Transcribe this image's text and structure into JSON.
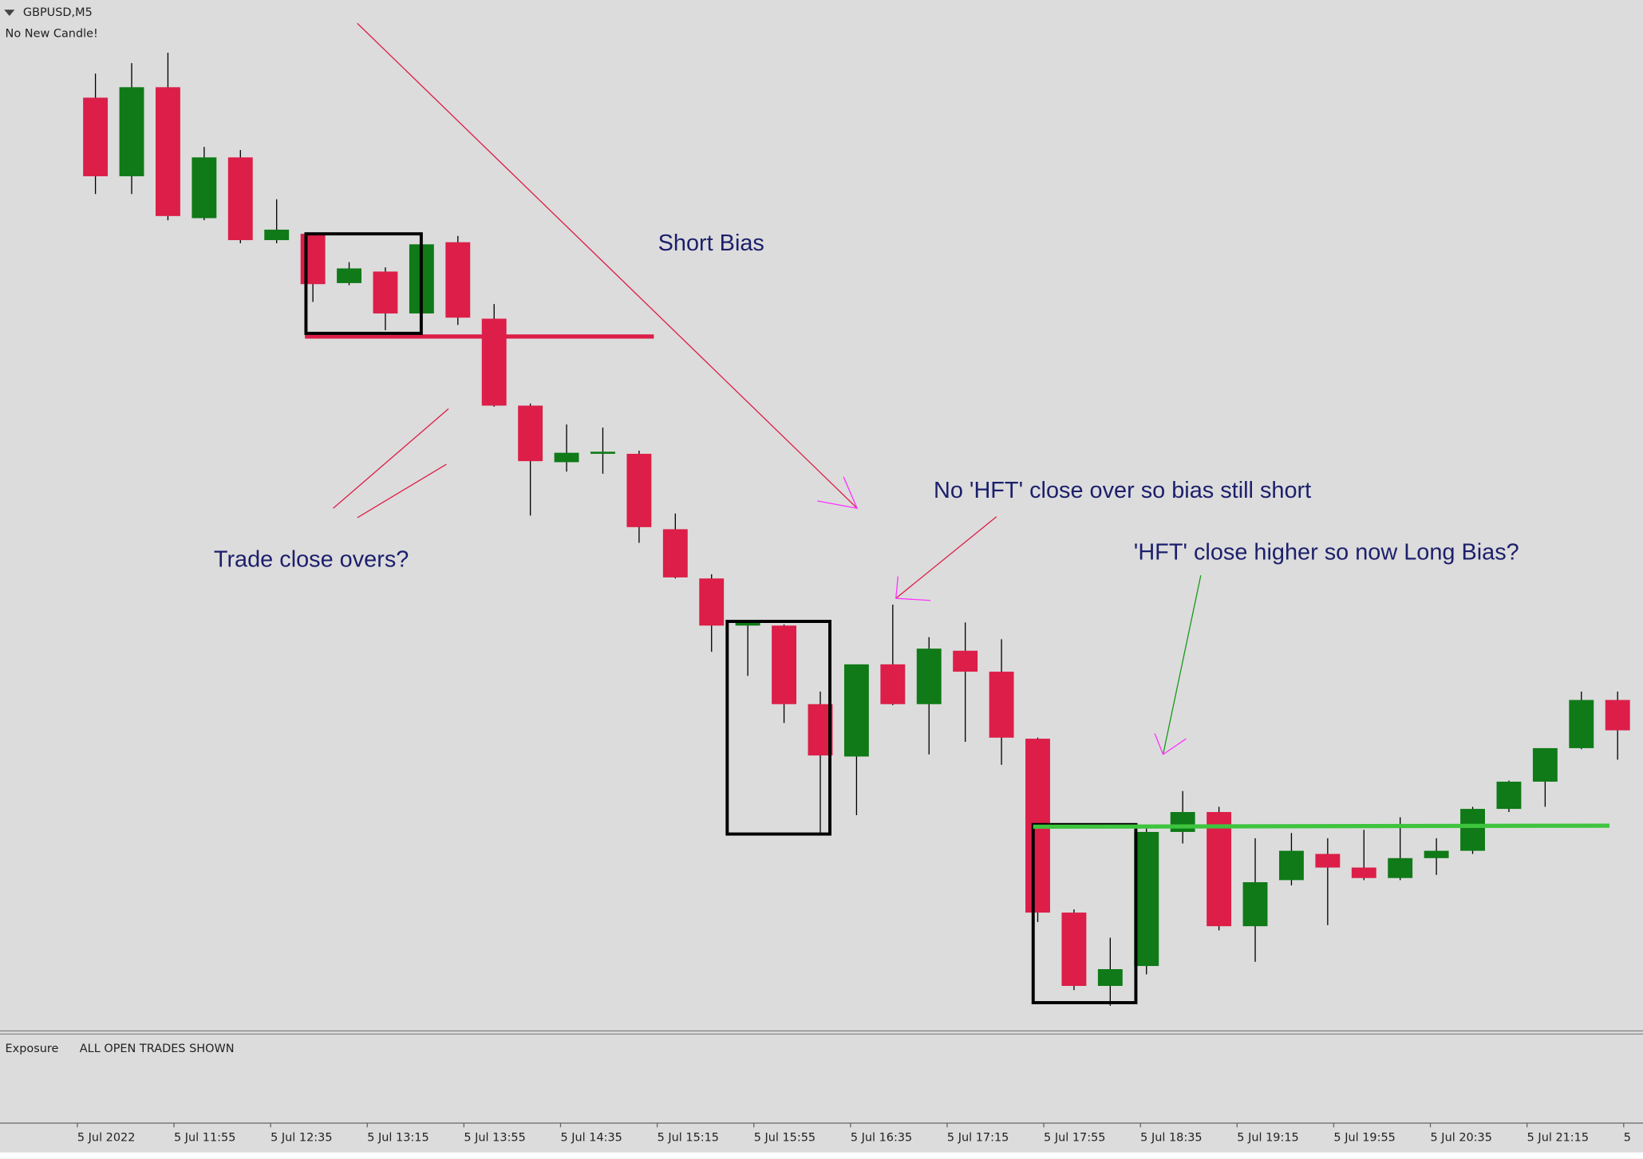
{
  "chart_data": {
    "type": "candlestick",
    "title": "GBPUSD,M5",
    "subtitle": "No New Candle!",
    "annotations": [
      "Short Bias",
      "Trade close overs?",
      "No 'HFT' close over so bias still short",
      "'HFT' close higher so now Long Bias?"
    ],
    "x": [
      675,
      690,
      705,
      720,
      735,
      750,
      765,
      780,
      795,
      810,
      825,
      840,
      855,
      870,
      885,
      900,
      915,
      930,
      945,
      960,
      975,
      990,
      1005,
      1020,
      1035,
      1050,
      1065,
      1080,
      1095,
      1110,
      1125,
      1140,
      1155,
      1170,
      1185,
      1200,
      1215,
      1230,
      1245,
      1260,
      1275,
      1290,
      1305
    ],
    "open": [
      907,
      832,
      917,
      792,
      850,
      771,
      777,
      730,
      741,
      701,
      769,
      696,
      613,
      559,
      567,
      567,
      495,
      448,
      403,
      403,
      328,
      278,
      366,
      328,
      379,
      359,
      295,
      129,
      59,
      78,
      206,
      225,
      116,
      160,
      185,
      172,
      162,
      181,
      188,
      228,
      254,
      286,
      332
    ],
    "high": [
      930,
      940,
      950,
      860,
      857,
      810,
      777,
      750,
      745,
      775,
      775,
      710,
      615,
      595,
      592,
      570,
      510,
      452,
      408,
      404,
      340,
      366,
      423,
      392,
      406,
      390,
      296,
      132,
      105,
      210,
      245,
      230,
      200,
      205,
      200,
      208,
      220,
      200,
      230,
      255,
      286,
      340,
      340
    ],
    "low": [
      815,
      815,
      790,
      790,
      768,
      768,
      712,
      728,
      685,
      687,
      690,
      612,
      508,
      550,
      548,
      482,
      448,
      378,
      355,
      310,
      205,
      222,
      327,
      280,
      292,
      270,
      120,
      55,
      40,
      70,
      195,
      112,
      82,
      155,
      117,
      160,
      160,
      165,
      185,
      225,
      230,
      285,
      275
    ],
    "close": [
      832,
      917,
      794,
      850,
      771,
      781,
      729,
      744,
      701,
      767,
      697,
      613,
      560,
      568,
      569,
      497,
      449,
      403,
      406,
      328,
      279,
      366,
      328,
      381,
      359,
      296,
      129,
      59,
      75,
      206,
      225,
      116,
      158,
      188,
      172,
      162,
      181,
      188,
      228,
      254,
      286,
      332,
      303
    ],
    "up_color": "#0f7a17",
    "down_color": "#dc1e48",
    "ylim": [
      0,
      1000
    ],
    "xlim": [
      643,
      1323
    ],
    "xticks": [
      {
        "value": 675,
        "label": "5 Jul 2022"
      },
      {
        "value": 715,
        "label": "5 Jul 11:55"
      },
      {
        "value": 755,
        "label": "5 Jul 12:35"
      },
      {
        "value": 795,
        "label": "5 Jul 13:15"
      },
      {
        "value": 835,
        "label": "5 Jul 13:55"
      },
      {
        "value": 875,
        "label": "5 Jul 14:35"
      },
      {
        "value": 915,
        "label": "5 Jul 15:15"
      },
      {
        "value": 955,
        "label": "5 Jul 15:55"
      },
      {
        "value": 995,
        "label": "5 Jul 16:35"
      },
      {
        "value": 1035,
        "label": "5 Jul 17:15"
      },
      {
        "value": 1075,
        "label": "5 Jul 17:55"
      },
      {
        "value": 1115,
        "label": "5 Jul 18:35"
      },
      {
        "value": 1155,
        "label": "5 Jul 19:15"
      },
      {
        "value": 1195,
        "label": "5 Jul 19:55"
      },
      {
        "value": 1235,
        "label": "5 Jul 20:35"
      },
      {
        "value": 1275,
        "label": "5 Jul 21:15"
      },
      {
        "value": 1315,
        "label": "5"
      }
    ]
  },
  "bottom_panel": {
    "title": "Exposure",
    "caption": "ALL OPEN TRADES SHOWN"
  }
}
